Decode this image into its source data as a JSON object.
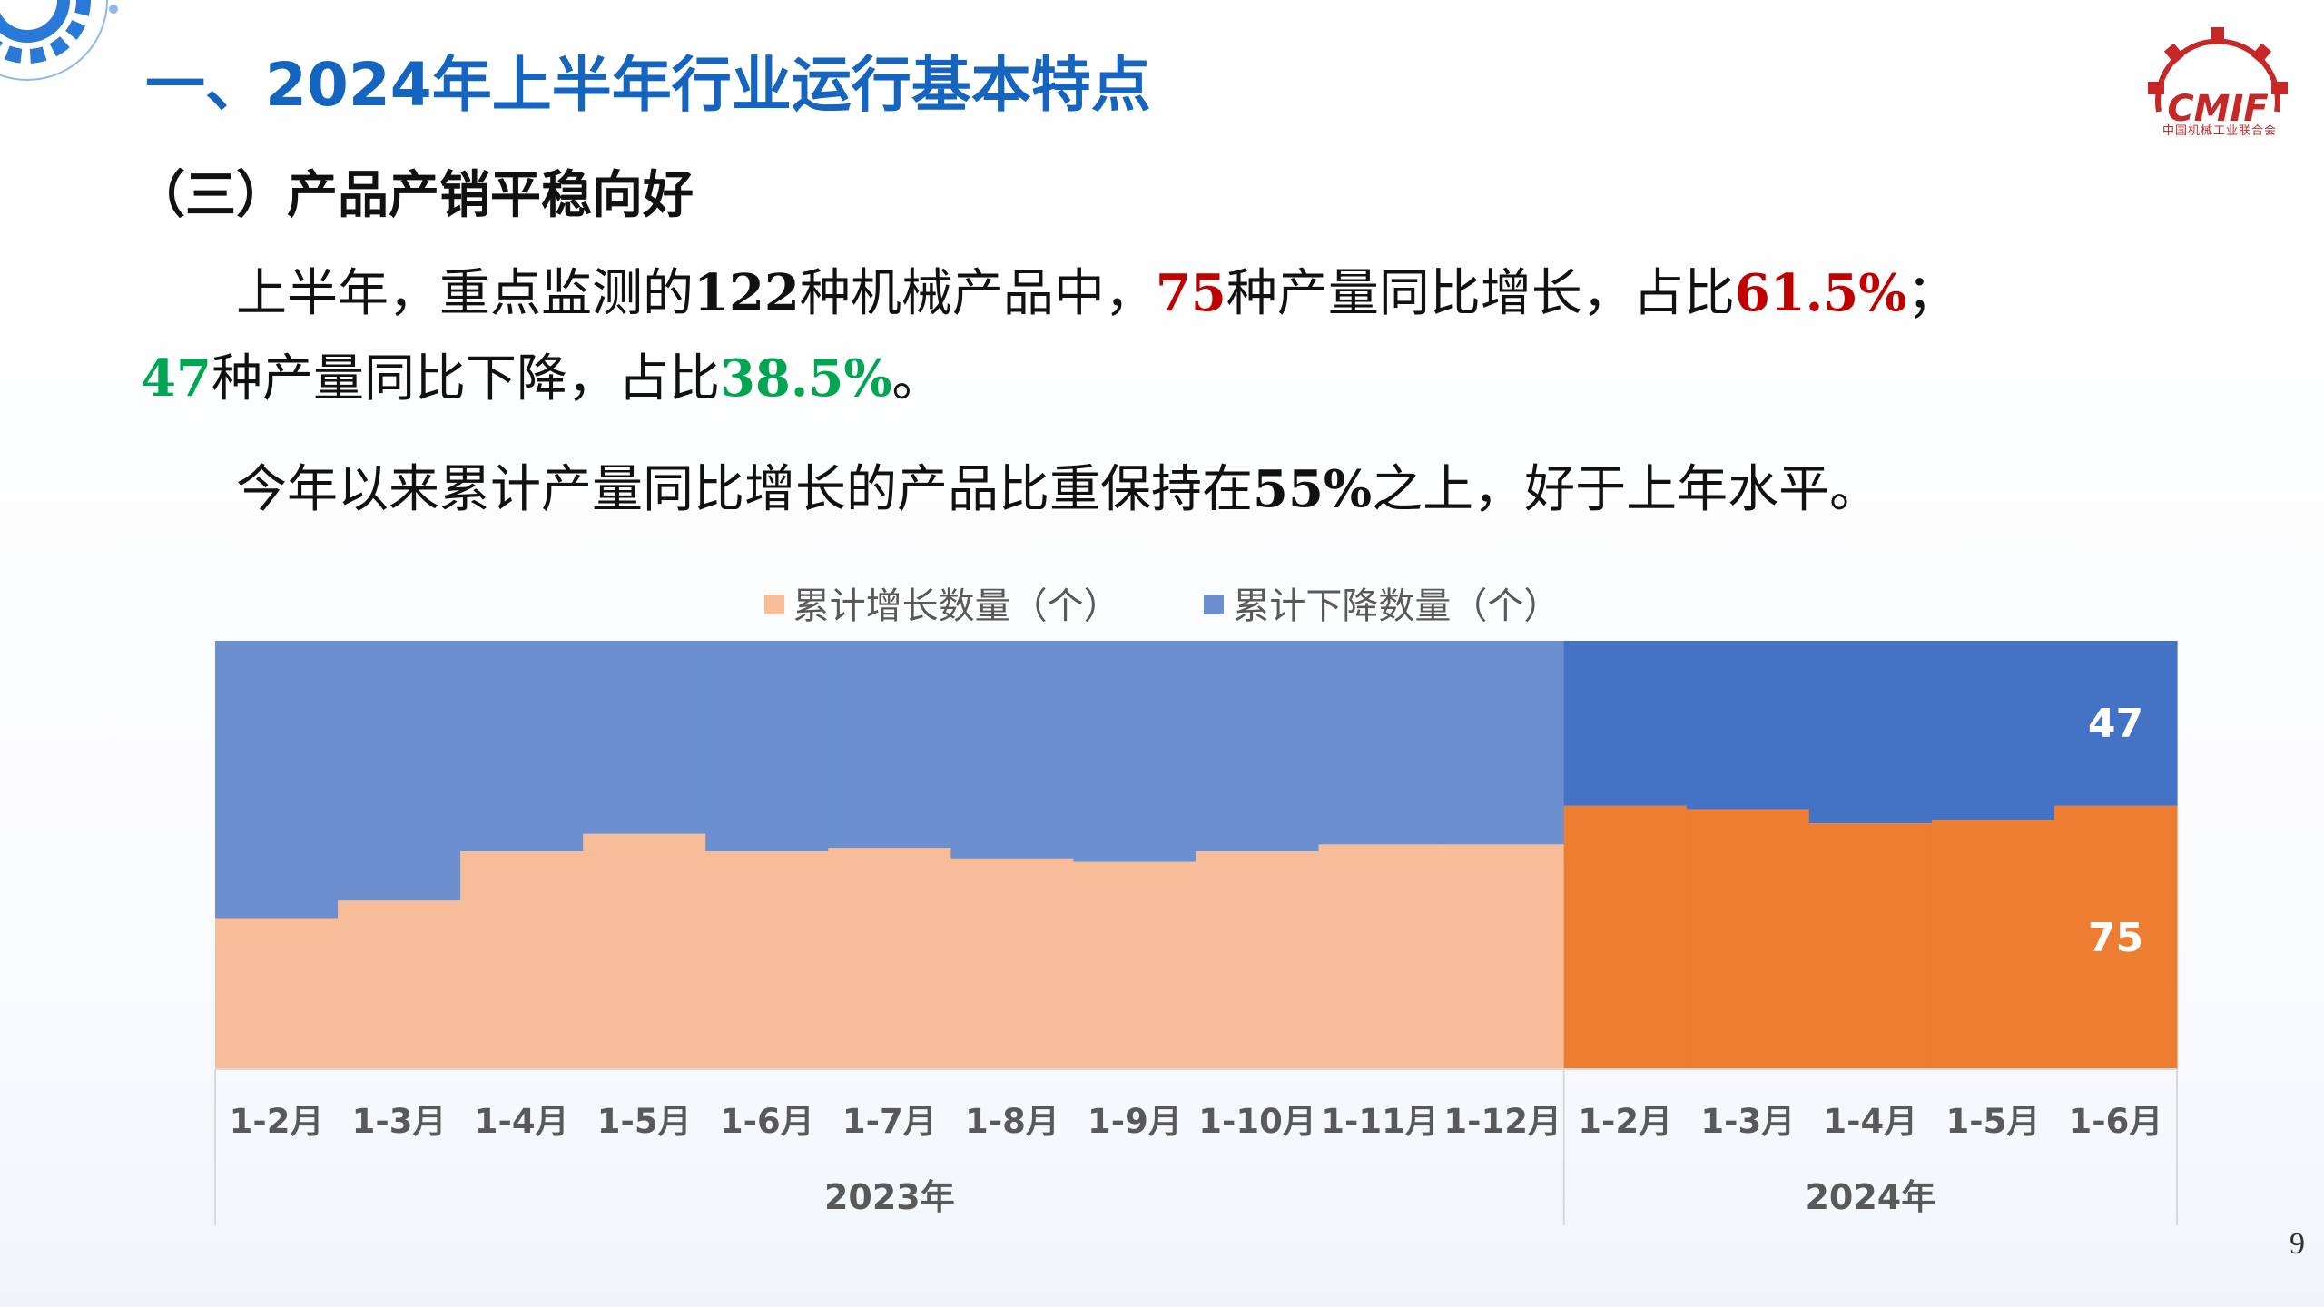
{
  "title": "一、2024年上半年行业运行基本特点",
  "subtitle": "（三）产品产销平稳向好",
  "paragraph1": {
    "t1": "上半年，重点监测的",
    "n1": "122",
    "t2": "种机械产品中，",
    "n2": "75",
    "t3": "种产量同比增长，占比",
    "n3": "61.5%",
    "t4": "；"
  },
  "paragraph2": {
    "n1": "47",
    "t1": "种产量同比下降，占比",
    "n2": "38.5%",
    "t2": "。"
  },
  "paragraph3": {
    "t1": "今年以来累计产量同比增长的产品比重保持在",
    "n1": "55%",
    "t2": "之上，好于上年水平。"
  },
  "logo": {
    "text": "CMIF",
    "caption": "中国机械工业联合会"
  },
  "page_number": "9",
  "colors": {
    "title": "#1565c0",
    "red": "#c00000",
    "green": "#00a651",
    "growth_2023": "#f6bd98",
    "decline_2023": "#6b8fcf",
    "growth_2024": "#ed7d31",
    "decline_2024": "#4472c4"
  },
  "chart_data": {
    "type": "area",
    "stacking": "percent",
    "legend_position": "top-center",
    "categories": [
      "1-2月",
      "1-3月",
      "1-4月",
      "1-5月",
      "1-6月",
      "1-7月",
      "1-8月",
      "1-9月",
      "1-10月",
      "1-11月",
      "1-12月",
      "1-2月",
      "1-3月",
      "1-4月",
      "1-5月",
      "1-6月"
    ],
    "groups": [
      {
        "label": "2023年",
        "count": 11
      },
      {
        "label": "2024年",
        "count": 5
      }
    ],
    "series": [
      {
        "name": "累计增长数量（个）",
        "values": [
          43,
          48,
          62,
          67,
          62,
          63,
          60,
          59,
          62,
          64,
          64,
          75,
          74,
          70,
          71,
          75
        ]
      },
      {
        "name": "累计下降数量（个）",
        "values": [
          79,
          74,
          60,
          55,
          60,
          59,
          62,
          63,
          60,
          58,
          58,
          47,
          48,
          52,
          51,
          47
        ]
      }
    ],
    "data_labels": [
      {
        "series": 0,
        "index": 15,
        "value": "75"
      },
      {
        "series": 1,
        "index": 15,
        "value": "47"
      }
    ]
  }
}
